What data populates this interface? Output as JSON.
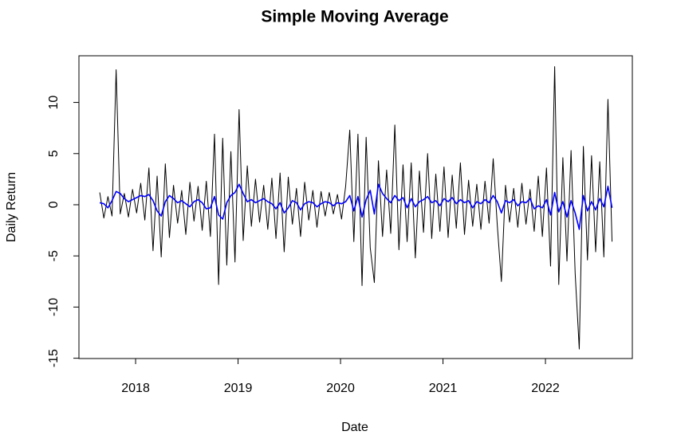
{
  "chart_data": {
    "type": "line",
    "title": "Simple Moving Average",
    "x_label": "Date",
    "y_label": "Daily Return",
    "x": [
      2017.65,
      2017.69,
      2017.73,
      2017.77,
      2017.81,
      2017.85,
      2017.89,
      2017.93,
      2017.97,
      2018.01,
      2018.05,
      2018.09,
      2018.13,
      2018.17,
      2018.21,
      2018.25,
      2018.29,
      2018.33,
      2018.37,
      2018.41,
      2018.45,
      2018.49,
      2018.53,
      2018.57,
      2018.61,
      2018.65,
      2018.69,
      2018.73,
      2018.77,
      2018.81,
      2018.85,
      2018.89,
      2018.93,
      2018.97,
      2019.01,
      2019.05,
      2019.09,
      2019.13,
      2019.17,
      2019.21,
      2019.25,
      2019.29,
      2019.33,
      2019.37,
      2019.41,
      2019.45,
      2019.49,
      2019.53,
      2019.57,
      2019.61,
      2019.65,
      2019.69,
      2019.73,
      2019.77,
      2019.81,
      2019.85,
      2019.89,
      2019.93,
      2019.97,
      2020.01,
      2020.05,
      2020.09,
      2020.13,
      2020.17,
      2020.21,
      2020.25,
      2020.29,
      2020.33,
      2020.37,
      2020.41,
      2020.45,
      2020.49,
      2020.53,
      2020.57,
      2020.61,
      2020.65,
      2020.69,
      2020.73,
      2020.77,
      2020.81,
      2020.85,
      2020.89,
      2020.93,
      2020.97,
      2021.01,
      2021.05,
      2021.09,
      2021.13,
      2021.17,
      2021.21,
      2021.25,
      2021.29,
      2021.33,
      2021.37,
      2021.41,
      2021.45,
      2021.49,
      2021.53,
      2021.57,
      2021.61,
      2021.65,
      2021.69,
      2021.73,
      2021.77,
      2021.81,
      2021.85,
      2021.89,
      2021.93,
      2021.97,
      2022.01,
      2022.05,
      2022.09,
      2022.13,
      2022.17,
      2022.21,
      2022.25,
      2022.29,
      2022.33,
      2022.37,
      2022.41,
      2022.45,
      2022.49,
      2022.53,
      2022.57,
      2022.61,
      2022.65
    ],
    "series": [
      {
        "color": "#000000",
        "values": [
          1.2,
          -1.3,
          0.8,
          -1.1,
          13.2,
          -0.9,
          1.1,
          -1.2,
          1.5,
          -0.8,
          2.1,
          -1.5,
          3.6,
          -4.5,
          2.8,
          -5.1,
          4.0,
          -3.2,
          1.9,
          -1.8,
          1.4,
          -2.9,
          2.2,
          -1.6,
          1.8,
          -2.5,
          2.3,
          -3.1,
          6.9,
          -7.8,
          6.5,
          -5.9,
          5.2,
          -5.6,
          9.3,
          -3.5,
          3.8,
          -2.1,
          2.5,
          -1.7,
          1.9,
          -2.4,
          2.6,
          -3.3,
          3.1,
          -4.6,
          2.7,
          -1.9,
          1.6,
          -3.1,
          2.2,
          -1.5,
          1.4,
          -2.2,
          1.3,
          -1.1,
          1.2,
          -0.9,
          1.0,
          -1.4,
          1.8,
          7.3,
          -3.6,
          6.9,
          -7.9,
          6.6,
          -4.2,
          -7.6,
          4.3,
          -3.1,
          3.4,
          -2.8,
          7.8,
          -4.4,
          3.9,
          -3.6,
          4.1,
          -5.2,
          3.3,
          -2.7,
          5.0,
          -3.3,
          3.0,
          -2.6,
          3.7,
          -3.2,
          2.9,
          -2.3,
          4.1,
          -2.9,
          2.4,
          -2.1,
          2.0,
          -2.4,
          2.3,
          -1.8,
          4.5,
          -2.0,
          -7.5,
          1.9,
          -1.7,
          1.6,
          -2.2,
          2.1,
          -1.9,
          1.5,
          -2.6,
          2.8,
          -3.1,
          3.6,
          -6.0,
          13.5,
          -7.8,
          4.6,
          -5.5,
          5.3,
          -6.7,
          -14.1,
          5.7,
          -5.4,
          4.8,
          -4.6,
          4.2,
          -5.1,
          10.3,
          -3.6
        ]
      },
      {
        "color": "#0000ff",
        "values": [
          0.2,
          0.1,
          -0.3,
          0.4,
          1.3,
          1.1,
          0.6,
          0.3,
          0.5,
          0.7,
          0.9,
          0.8,
          1.0,
          0.4,
          -0.6,
          -1.1,
          0.3,
          0.9,
          0.6,
          0.2,
          0.4,
          0.1,
          -0.2,
          0.3,
          0.5,
          0.2,
          -0.4,
          -0.3,
          0.8,
          -1.0,
          -1.4,
          0.2,
          0.9,
          1.2,
          2.0,
          1.1,
          0.3,
          0.5,
          0.2,
          0.4,
          0.6,
          0.3,
          0.1,
          -0.4,
          0.2,
          -0.8,
          -0.3,
          0.4,
          0.2,
          -0.5,
          0.1,
          0.3,
          0.2,
          -0.2,
          0.1,
          0.3,
          0.2,
          -0.1,
          0.2,
          0.1,
          0.3,
          0.9,
          -0.6,
          0.8,
          -1.2,
          0.5,
          1.4,
          -0.9,
          2.0,
          1.1,
          0.6,
          0.2,
          0.9,
          0.4,
          0.7,
          -0.3,
          0.6,
          -0.2,
          0.3,
          0.5,
          0.8,
          0.2,
          0.4,
          -0.1,
          0.6,
          0.3,
          0.7,
          0.1,
          0.5,
          0.2,
          0.4,
          -0.3,
          0.3,
          0.1,
          0.5,
          0.2,
          0.9,
          0.3,
          -0.8,
          0.4,
          0.2,
          0.5,
          -0.1,
          0.3,
          0.2,
          0.6,
          -0.4,
          -0.1,
          -0.3,
          0.5,
          -1.0,
          1.2,
          -0.7,
          0.3,
          -1.2,
          0.4,
          -0.8,
          -2.4,
          0.9,
          -0.6,
          0.3,
          -0.5,
          0.6,
          -0.2,
          1.8,
          -0.3
        ]
      }
    ],
    "xlim": [
      2017.447,
      2022.848
    ],
    "xticks": [
      2018,
      2019,
      2020,
      2021,
      2022
    ],
    "ylim": [
      -15.03,
      14.56
    ],
    "yticks": [
      -15,
      -10,
      -5,
      0,
      5,
      10
    ]
  }
}
